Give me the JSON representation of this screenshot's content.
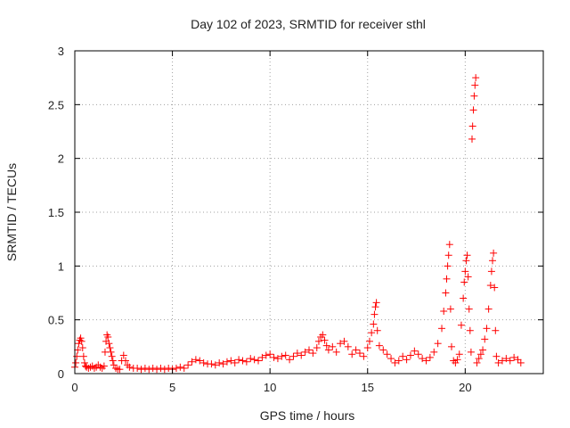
{
  "chart_data": {
    "type": "scatter",
    "title": "Day 102 of 2023, SRMTID for receiver sthl",
    "xlabel": "GPS time / hours",
    "ylabel": "SRMTID / TECUs",
    "xlim": [
      0,
      24
    ],
    "ylim": [
      0,
      3
    ],
    "xticks": [
      0,
      5,
      10,
      15,
      20
    ],
    "yticks": [
      0,
      0.5,
      1,
      1.5,
      2,
      2.5,
      3
    ],
    "xtick_labels": [
      "0",
      "5",
      "10",
      "15",
      "20"
    ],
    "ytick_labels": [
      "0",
      "0.5",
      "1",
      "1.5",
      "2",
      "2.5",
      "3"
    ],
    "grid": true,
    "marker": "+",
    "series": [
      {
        "name": "sthl",
        "color": "#ff0000",
        "points": [
          [
            0.0,
            0.06
          ],
          [
            0.05,
            0.1
          ],
          [
            0.1,
            0.16
          ],
          [
            0.15,
            0.22
          ],
          [
            0.2,
            0.28
          ],
          [
            0.25,
            0.31
          ],
          [
            0.3,
            0.33
          ],
          [
            0.35,
            0.3
          ],
          [
            0.4,
            0.24
          ],
          [
            0.45,
            0.16
          ],
          [
            0.5,
            0.1
          ],
          [
            0.55,
            0.07
          ],
          [
            0.6,
            0.06
          ],
          [
            0.7,
            0.05
          ],
          [
            0.8,
            0.06
          ],
          [
            0.9,
            0.07
          ],
          [
            1.0,
            0.05
          ],
          [
            1.1,
            0.06
          ],
          [
            1.2,
            0.08
          ],
          [
            1.3,
            0.06
          ],
          [
            1.4,
            0.05
          ],
          [
            1.5,
            0.07
          ],
          [
            1.55,
            0.2
          ],
          [
            1.6,
            0.3
          ],
          [
            1.65,
            0.36
          ],
          [
            1.7,
            0.34
          ],
          [
            1.75,
            0.28
          ],
          [
            1.8,
            0.24
          ],
          [
            1.85,
            0.2
          ],
          [
            1.9,
            0.16
          ],
          [
            1.95,
            0.12
          ],
          [
            2.0,
            0.08
          ],
          [
            2.1,
            0.05
          ],
          [
            2.2,
            0.04
          ],
          [
            2.3,
            0.04
          ],
          [
            2.4,
            0.12
          ],
          [
            2.5,
            0.17
          ],
          [
            2.6,
            0.12
          ],
          [
            2.7,
            0.08
          ],
          [
            2.8,
            0.06
          ],
          [
            3.0,
            0.05
          ],
          [
            3.2,
            0.05
          ],
          [
            3.4,
            0.04
          ],
          [
            3.6,
            0.05
          ],
          [
            3.8,
            0.04
          ],
          [
            4.0,
            0.05
          ],
          [
            4.2,
            0.04
          ],
          [
            4.4,
            0.05
          ],
          [
            4.6,
            0.04
          ],
          [
            4.8,
            0.05
          ],
          [
            5.0,
            0.04
          ],
          [
            5.2,
            0.05
          ],
          [
            5.4,
            0.06
          ],
          [
            5.6,
            0.05
          ],
          [
            5.8,
            0.08
          ],
          [
            6.0,
            0.11
          ],
          [
            6.2,
            0.13
          ],
          [
            6.4,
            0.12
          ],
          [
            6.6,
            0.1
          ],
          [
            6.8,
            0.09
          ],
          [
            7.0,
            0.09
          ],
          [
            7.2,
            0.08
          ],
          [
            7.4,
            0.1
          ],
          [
            7.6,
            0.09
          ],
          [
            7.8,
            0.11
          ],
          [
            8.0,
            0.12
          ],
          [
            8.2,
            0.1
          ],
          [
            8.4,
            0.13
          ],
          [
            8.6,
            0.12
          ],
          [
            8.8,
            0.11
          ],
          [
            9.0,
            0.14
          ],
          [
            9.2,
            0.13
          ],
          [
            9.4,
            0.12
          ],
          [
            9.6,
            0.15
          ],
          [
            9.8,
            0.17
          ],
          [
            10.0,
            0.18
          ],
          [
            10.2,
            0.15
          ],
          [
            10.4,
            0.14
          ],
          [
            10.6,
            0.16
          ],
          [
            10.8,
            0.17
          ],
          [
            11.0,
            0.13
          ],
          [
            11.2,
            0.16
          ],
          [
            11.4,
            0.19
          ],
          [
            11.6,
            0.17
          ],
          [
            11.8,
            0.2
          ],
          [
            12.0,
            0.22
          ],
          [
            12.2,
            0.19
          ],
          [
            12.4,
            0.24
          ],
          [
            12.5,
            0.3
          ],
          [
            12.6,
            0.34
          ],
          [
            12.7,
            0.36
          ],
          [
            12.8,
            0.31
          ],
          [
            12.9,
            0.26
          ],
          [
            13.0,
            0.22
          ],
          [
            13.2,
            0.25
          ],
          [
            13.4,
            0.2
          ],
          [
            13.6,
            0.28
          ],
          [
            13.8,
            0.3
          ],
          [
            14.0,
            0.25
          ],
          [
            14.2,
            0.18
          ],
          [
            14.4,
            0.22
          ],
          [
            14.6,
            0.19
          ],
          [
            14.8,
            0.16
          ],
          [
            15.0,
            0.24
          ],
          [
            15.1,
            0.3
          ],
          [
            15.2,
            0.38
          ],
          [
            15.3,
            0.46
          ],
          [
            15.35,
            0.55
          ],
          [
            15.4,
            0.62
          ],
          [
            15.45,
            0.66
          ],
          [
            15.5,
            0.4
          ],
          [
            15.6,
            0.26
          ],
          [
            15.8,
            0.22
          ],
          [
            16.0,
            0.18
          ],
          [
            16.2,
            0.14
          ],
          [
            16.4,
            0.1
          ],
          [
            16.6,
            0.12
          ],
          [
            16.8,
            0.16
          ],
          [
            17.0,
            0.13
          ],
          [
            17.2,
            0.17
          ],
          [
            17.4,
            0.21
          ],
          [
            17.6,
            0.18
          ],
          [
            17.8,
            0.14
          ],
          [
            18.0,
            0.12
          ],
          [
            18.2,
            0.15
          ],
          [
            18.4,
            0.2
          ],
          [
            18.6,
            0.28
          ],
          [
            18.8,
            0.42
          ],
          [
            18.9,
            0.58
          ],
          [
            19.0,
            0.75
          ],
          [
            19.05,
            0.88
          ],
          [
            19.1,
            1.0
          ],
          [
            19.15,
            1.1
          ],
          [
            19.2,
            1.2
          ],
          [
            19.25,
            0.6
          ],
          [
            19.3,
            0.25
          ],
          [
            19.4,
            0.12
          ],
          [
            19.5,
            0.1
          ],
          [
            19.6,
            0.13
          ],
          [
            19.7,
            0.18
          ],
          [
            19.8,
            0.45
          ],
          [
            19.9,
            0.7
          ],
          [
            19.95,
            0.85
          ],
          [
            20.0,
            0.95
          ],
          [
            20.05,
            1.05
          ],
          [
            20.1,
            1.1
          ],
          [
            20.15,
            0.9
          ],
          [
            20.2,
            0.6
          ],
          [
            20.25,
            0.4
          ],
          [
            20.3,
            0.2
          ],
          [
            20.35,
            2.18
          ],
          [
            20.38,
            2.3
          ],
          [
            20.42,
            2.45
          ],
          [
            20.46,
            2.58
          ],
          [
            20.5,
            2.68
          ],
          [
            20.54,
            2.75
          ],
          [
            20.6,
            0.1
          ],
          [
            20.7,
            0.14
          ],
          [
            20.8,
            0.18
          ],
          [
            20.9,
            0.22
          ],
          [
            21.0,
            0.32
          ],
          [
            21.1,
            0.42
          ],
          [
            21.2,
            0.6
          ],
          [
            21.3,
            0.82
          ],
          [
            21.35,
            0.95
          ],
          [
            21.4,
            1.05
          ],
          [
            21.45,
            1.12
          ],
          [
            21.5,
            0.8
          ],
          [
            21.55,
            0.4
          ],
          [
            21.6,
            0.16
          ],
          [
            21.7,
            0.1
          ],
          [
            21.9,
            0.12
          ],
          [
            22.1,
            0.14
          ],
          [
            22.3,
            0.12
          ],
          [
            22.5,
            0.15
          ],
          [
            22.7,
            0.13
          ],
          [
            22.85,
            0.1
          ]
        ]
      }
    ]
  }
}
